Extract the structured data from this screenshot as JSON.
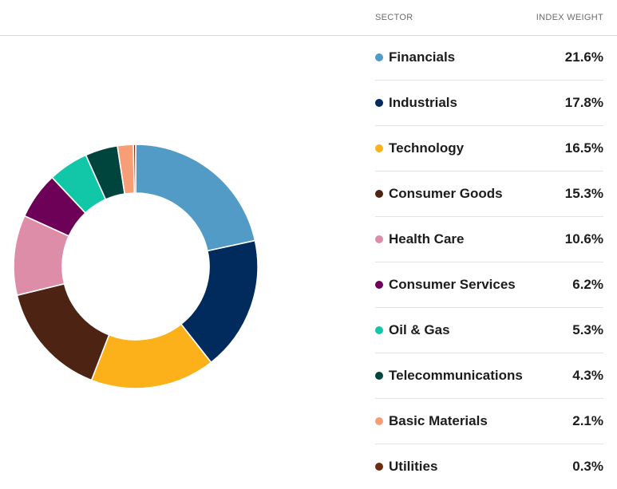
{
  "header": {
    "sector_label": "SECTOR",
    "weight_label": "INDEX WEIGHT"
  },
  "chart_data": {
    "type": "pie",
    "variant": "donut",
    "title": "",
    "categories": [
      "Financials",
      "Industrials",
      "Technology",
      "Consumer Goods",
      "Health Care",
      "Consumer Services",
      "Oil & Gas",
      "Telecommunications",
      "Basic Materials",
      "Utilities"
    ],
    "values": [
      21.6,
      17.8,
      16.5,
      15.3,
      10.6,
      6.2,
      5.3,
      4.3,
      2.1,
      0.3
    ],
    "value_labels": [
      "21.6%",
      "17.8%",
      "16.5%",
      "15.3%",
      "10.6%",
      "6.2%",
      "5.3%",
      "4.3%",
      "2.1%",
      "0.3%"
    ],
    "colors": [
      "#529bc6",
      "#002b5c",
      "#fcb11b",
      "#4d2414",
      "#de8da8",
      "#6c0157",
      "#12c6a8",
      "#00453d",
      "#f79e76",
      "#6b2d0e"
    ],
    "legend": "right"
  }
}
